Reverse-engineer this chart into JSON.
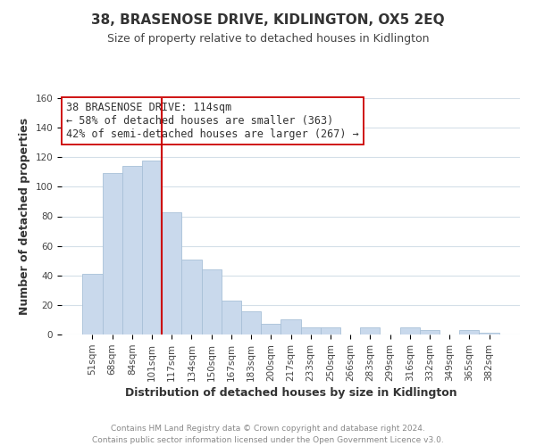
{
  "title": "38, BRASENOSE DRIVE, KIDLINGTON, OX5 2EQ",
  "subtitle": "Size of property relative to detached houses in Kidlington",
  "xlabel": "Distribution of detached houses by size in Kidlington",
  "ylabel": "Number of detached properties",
  "bar_labels": [
    "51sqm",
    "68sqm",
    "84sqm",
    "101sqm",
    "117sqm",
    "134sqm",
    "150sqm",
    "167sqm",
    "183sqm",
    "200sqm",
    "217sqm",
    "233sqm",
    "250sqm",
    "266sqm",
    "283sqm",
    "299sqm",
    "316sqm",
    "332sqm",
    "349sqm",
    "365sqm",
    "382sqm"
  ],
  "bar_values": [
    41,
    109,
    114,
    118,
    83,
    51,
    44,
    23,
    16,
    7,
    10,
    5,
    5,
    0,
    5,
    0,
    5,
    3,
    0,
    3,
    1
  ],
  "bar_color": "#c9d9ec",
  "bar_edge_color": "#a8c0d8",
  "vline_x_index": 4,
  "vline_color": "#cc0000",
  "annotation_line1": "38 BRASENOSE DRIVE: 114sqm",
  "annotation_line2": "← 58% of detached houses are smaller (363)",
  "annotation_line3": "42% of semi-detached houses are larger (267) →",
  "annotation_box_color": "#ffffff",
  "annotation_box_edge": "#cc0000",
  "ylim": [
    0,
    160
  ],
  "yticks": [
    0,
    20,
    40,
    60,
    80,
    100,
    120,
    140,
    160
  ],
  "footer_line1": "Contains HM Land Registry data © Crown copyright and database right 2024.",
  "footer_line2": "Contains public sector information licensed under the Open Government Licence v3.0.",
  "background_color": "#ffffff",
  "grid_color": "#d4dfe8",
  "title_fontsize": 11,
  "subtitle_fontsize": 9,
  "axis_label_fontsize": 9,
  "tick_fontsize": 7.5,
  "annotation_fontsize": 8.5,
  "footer_fontsize": 6.5
}
